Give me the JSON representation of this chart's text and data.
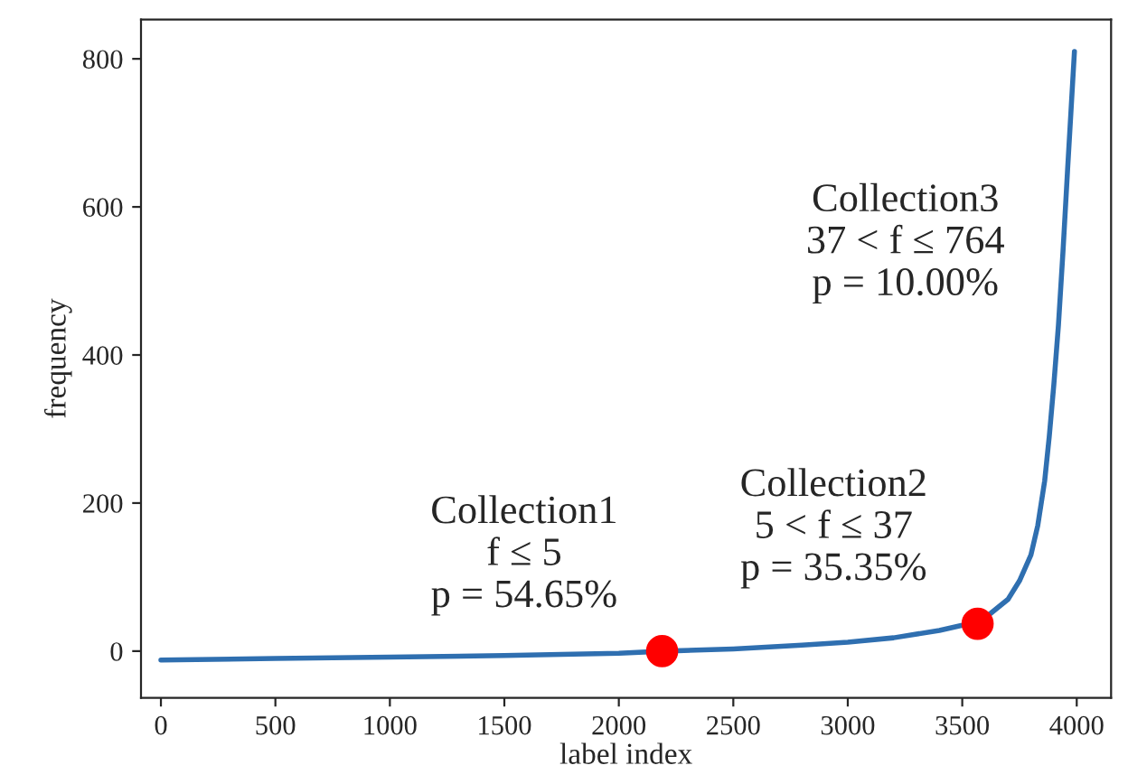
{
  "chart_data": {
    "type": "line",
    "xlabel": "label index",
    "ylabel": "frequency",
    "xlim": [
      -87,
      4150
    ],
    "ylim": [
      -63,
      853
    ],
    "xticks": [
      0,
      500,
      1000,
      1500,
      2000,
      2500,
      3000,
      3500,
      4000
    ],
    "yticks": [
      0,
      200,
      400,
      600,
      800
    ],
    "grid": false,
    "legend": false,
    "series": [
      {
        "color": "#2f6fb0",
        "marker": "none",
        "x": [
          0,
          500,
          1000,
          1500,
          2000,
          2200,
          2500,
          2800,
          3000,
          3200,
          3400,
          3500,
          3600,
          3700,
          3750,
          3800,
          3830,
          3860,
          3880,
          3900,
          3920,
          3940,
          3960,
          3975,
          3990
        ],
        "values": [
          -12,
          -10,
          -8,
          -6,
          -3,
          0,
          3,
          8,
          12,
          18,
          28,
          35,
          45,
          70,
          95,
          130,
          170,
          230,
          290,
          360,
          440,
          540,
          650,
          730,
          810
        ]
      },
      {
        "type": "scatter",
        "color": "#ff0000",
        "marker": "circle",
        "x": [
          2189,
          3567
        ],
        "values": [
          0,
          37
        ]
      }
    ],
    "annotations": [
      "Collection1\nf ≤ 5\np = 54.65%",
      "Collection2\n5 < f ≤ 37\np = 35.35%",
      "Collection3\n37 < f ≤ 764\np = 10.00%"
    ]
  }
}
